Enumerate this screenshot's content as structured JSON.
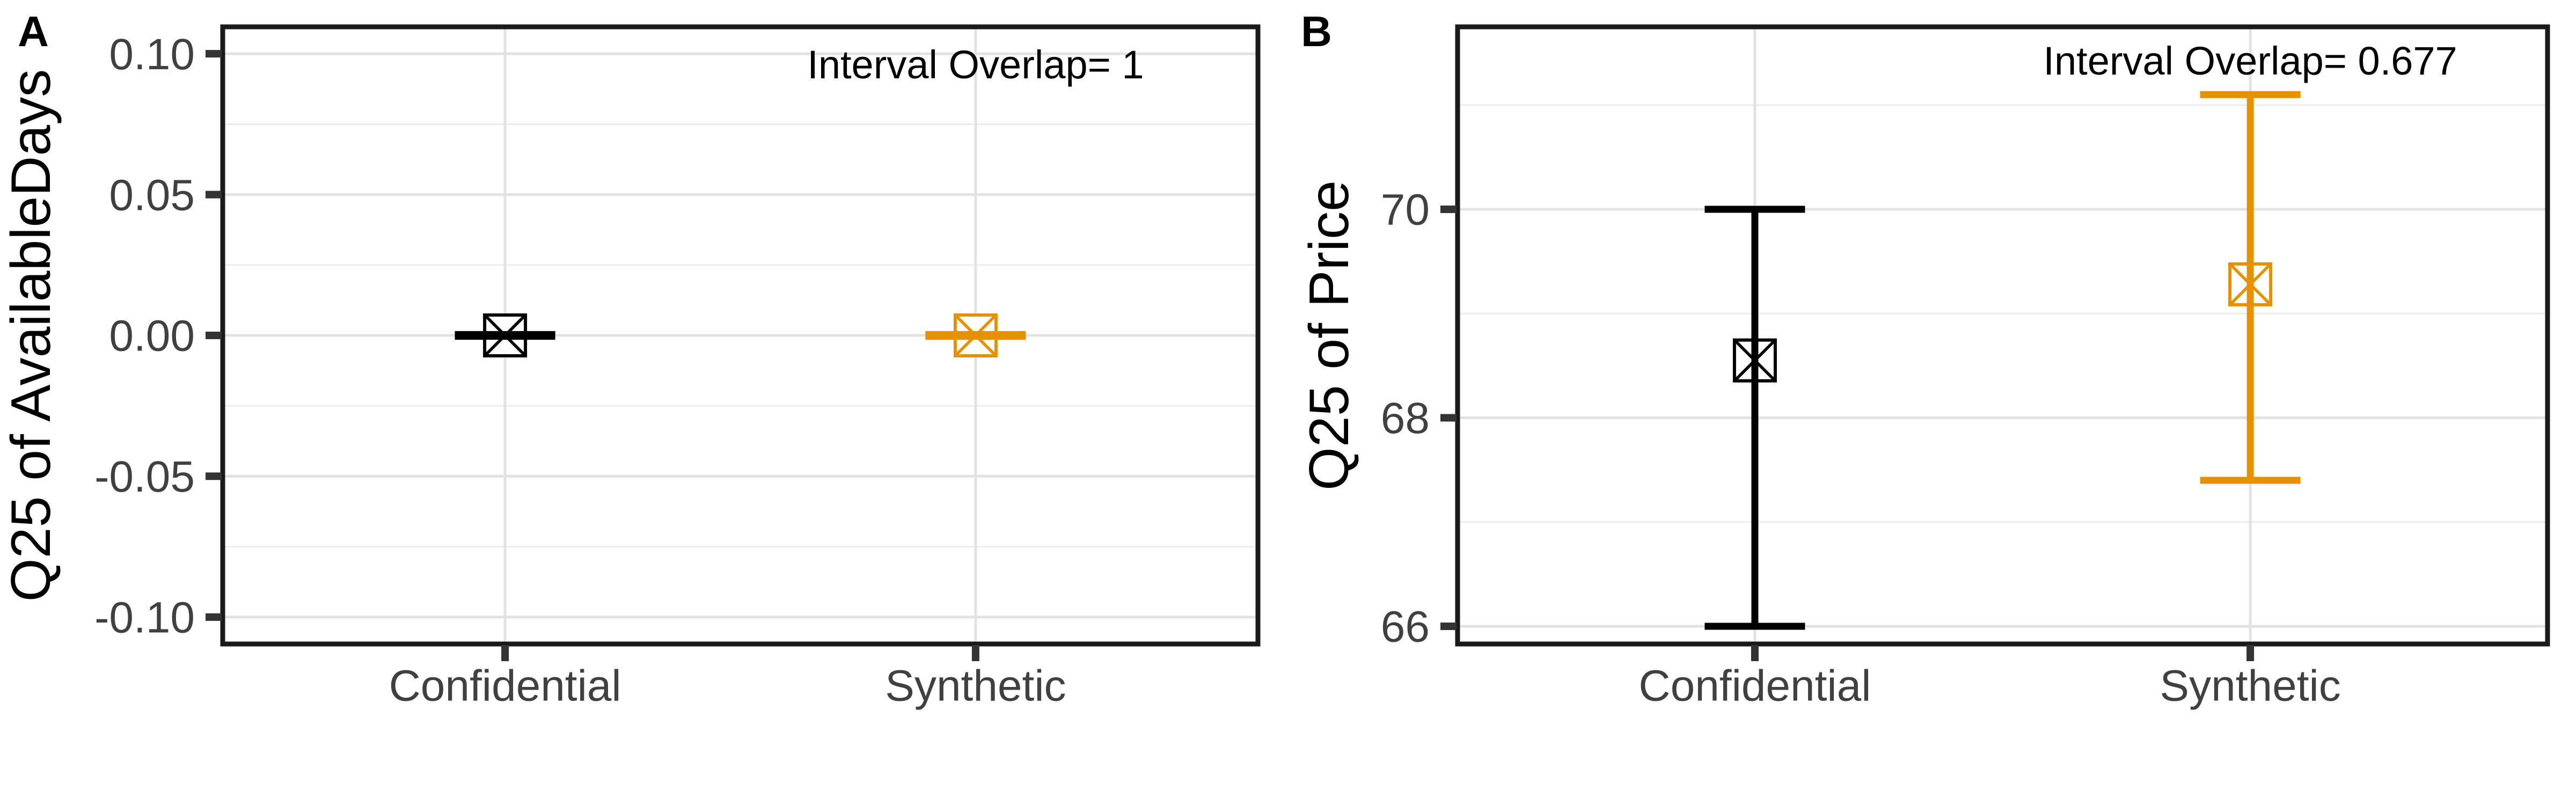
{
  "figure": {
    "background": "#FFFFFF",
    "description_panels": [
      "A",
      "B"
    ]
  },
  "style": {
    "confidential_color": "#000000",
    "synthetic_color": "#E69100",
    "grid_major_color": "#E2E2E2",
    "grid_minor_color": "#ECECEC",
    "axis_text_color": "#404040",
    "tick_mark_color": "#333333",
    "panel_border_color": "#1A1A1A",
    "annotation_color": "#000000",
    "title_color": "#000000"
  },
  "chart_data": [
    {
      "type": "errorbar",
      "panel_tag": "A",
      "ylabel": "Q25 of AvailableDays",
      "xlabel": "",
      "annotation": "Interval Overlap= 1",
      "interval_overlap": 1,
      "categories": [
        "Confidential",
        "Synthetic"
      ],
      "series": [
        {
          "name": "Confidential",
          "color": "#000000",
          "estimate": 0.0,
          "lower": -0.0003,
          "upper": 0.0003
        },
        {
          "name": "Synthetic",
          "color": "#E69100",
          "estimate": 0.0,
          "lower": -0.0003,
          "upper": 0.0003
        }
      ],
      "yticks": [
        0.1,
        0.05,
        0.0,
        -0.05,
        -0.1
      ],
      "ytick_labels": [
        "0.10",
        "0.05",
        "0.00",
        "-0.05",
        "-0.10"
      ],
      "yminor": [
        0.075,
        0.025,
        -0.025,
        -0.075
      ],
      "ylim": [
        -0.10955,
        0.10955
      ],
      "grid": true,
      "legend": "none"
    },
    {
      "type": "errorbar",
      "panel_tag": "B",
      "ylabel": "Q25 of Price",
      "xlabel": "",
      "annotation": "Interval Overlap= 0.677",
      "interval_overlap": 0.677,
      "categories": [
        "Confidential",
        "Synthetic"
      ],
      "series": [
        {
          "name": "Confidential",
          "color": "#000000",
          "estimate": 68.55,
          "lower": 66.0,
          "upper": 70.0
        },
        {
          "name": "Synthetic",
          "color": "#E69100",
          "estimate": 69.28,
          "lower": 67.4,
          "upper": 71.1
        }
      ],
      "yticks": [
        70,
        68,
        66
      ],
      "ytick_labels": [
        "70",
        "68",
        "66"
      ],
      "yminor": [
        71,
        69,
        67
      ],
      "ylim": [
        65.83,
        71.75
      ],
      "grid": true,
      "legend": "none"
    }
  ]
}
